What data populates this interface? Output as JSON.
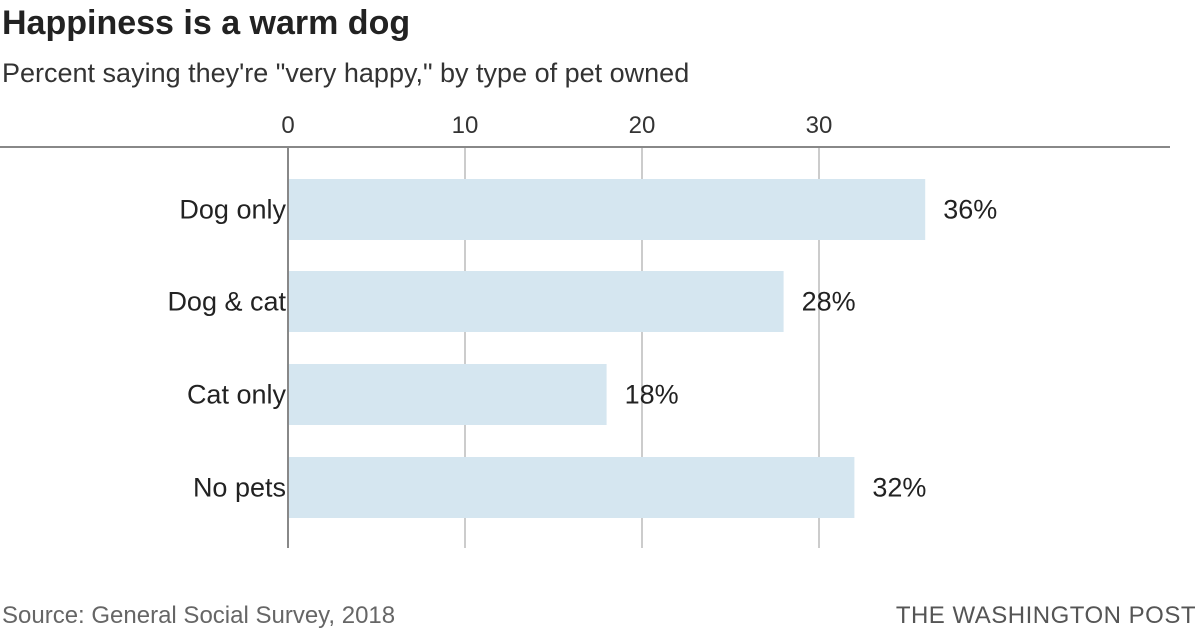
{
  "chart_data": {
    "type": "bar",
    "orientation": "horizontal",
    "title": "Happiness is a warm dog",
    "subtitle": "Percent saying they're \"very happy,\" by type of pet owned",
    "categories": [
      "Dog only",
      "Dog & cat",
      "Cat only",
      "No pets"
    ],
    "values": [
      36,
      28,
      18,
      32
    ],
    "data_labels": [
      "36%",
      "28%",
      "18%",
      "32%"
    ],
    "xlim": [
      0,
      37.5
    ],
    "xticks": [
      0,
      10,
      20,
      30
    ],
    "xtick_labels": [
      "0",
      "10",
      "20",
      "30"
    ],
    "axis_position": "top",
    "grid": true,
    "bar_color": "#d5e6f0"
  },
  "footer": {
    "source": "Source: General Social Survey, 2018",
    "credit": "THE WASHINGTON POST"
  }
}
